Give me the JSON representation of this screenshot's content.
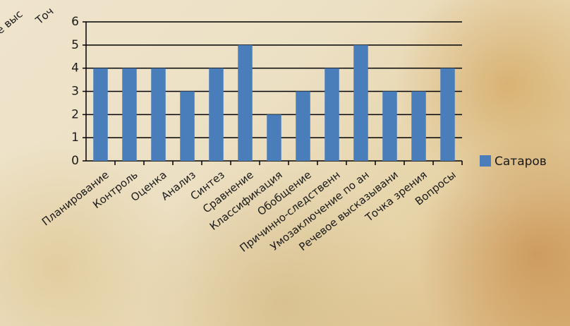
{
  "chart_data": {
    "type": "bar",
    "fragments": [
      "е выс",
      "Точ"
    ],
    "categories": [
      "Планирование",
      "Контроль",
      "Оценка",
      "Анализ",
      "Синтез",
      "Сравнение",
      "Классификация",
      "Обобщение",
      "Причинно-следственн",
      "Умозаключение по ан",
      "Речевое высказывани",
      "Точка зрения",
      "Вопросы"
    ],
    "series": [
      {
        "name": "Сатаров",
        "color": "#4a7ebb",
        "values": [
          4,
          4,
          4,
          3,
          4,
          5,
          2,
          3,
          4,
          5,
          3,
          3,
          4
        ]
      }
    ],
    "ylim": [
      0,
      6
    ],
    "yticks": [
      0,
      1,
      2,
      3,
      4,
      5,
      6
    ],
    "grid": true,
    "legend": "right"
  }
}
